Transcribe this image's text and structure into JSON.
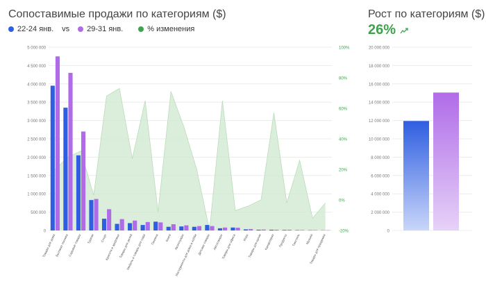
{
  "header": {
    "title": "Сопоставимые продажи по категориям ($)",
    "legend": {
      "series1": "22-24 янв.",
      "vs": "vs",
      "series2": "29-31 янв.",
      "series3": "% изменения"
    }
  },
  "right_header": {
    "title": "Рост по категориям ($)",
    "percent": "26%",
    "trend_icon": "trend-up-icon"
  },
  "colors": {
    "series1": "#2f5ee0",
    "series2": "#b06ce8",
    "pct_fill": "#cfe8cf",
    "pct_text": "#3fa34d"
  },
  "chart_data": [
    {
      "type": "bar",
      "title": "Сопоставимые продажи по категориям ($)",
      "categories": [
        "Товары для дома",
        "Бытовая техника",
        "Садовые товары",
        "Туризм",
        "Спорт",
        "Красота и здоровье",
        "Товары для детей",
        "Мебель и товары для сада",
        "Гигиена",
        "Книги",
        "Аксессуары",
        "Инструменты для дома и хобби",
        "Детские товары",
        "Автотовары",
        "Товары для офиса",
        "Игры",
        "Товары для кухни",
        "Канцелярия",
        "Продукты",
        "Текстиль",
        "Музыка",
        "Товары для праздника"
      ],
      "series": [
        {
          "name": "22-24 янв.",
          "values": [
            3950000,
            3350000,
            2050000,
            830000,
            320000,
            180000,
            200000,
            150000,
            240000,
            100000,
            110000,
            100000,
            150000,
            60000,
            80000,
            30000,
            20000,
            20000,
            15000,
            10000,
            8000,
            5000
          ]
        },
        {
          "name": "29-31 янв.",
          "values": [
            4750000,
            4300000,
            2700000,
            860000,
            580000,
            310000,
            270000,
            230000,
            220000,
            170000,
            140000,
            120000,
            120000,
            80000,
            75000,
            40000,
            25000,
            20000,
            20000,
            12000,
            10000,
            8000
          ]
        },
        {
          "name": "% изменения",
          "axis": "right",
          "values": [
            20,
            28,
            32,
            3,
            68,
            73,
            27,
            65,
            -8,
            71,
            48,
            20,
            -20,
            65,
            -7,
            -4,
            0,
            57,
            -2,
            26,
            -12,
            -2
          ]
        }
      ],
      "ylim": [
        0,
        5000000
      ],
      "y_ticks": [
        "0",
        "500 000",
        "1 000 000",
        "1 500 000",
        "2 000 000",
        "2 500 000",
        "3 000 000",
        "3 500 000",
        "4 000 000",
        "4 500 000",
        "5 000 000"
      ],
      "y2lim": [
        -20,
        100
      ],
      "y2_ticks": [
        "-20%",
        "0%",
        "20%",
        "40%",
        "60%",
        "80%",
        "100%"
      ],
      "x_tick_labels_shown": [
        "Товары для дома",
        "Бытовая техника",
        "Садовые товары",
        "Туризм",
        "Спорт",
        "Красота и здоровье",
        "Товары для детей",
        "Мебель и товары для сада",
        "Гигиена",
        "Книги",
        "Аксессуары",
        "Инструменты для дома и хобби",
        "Детские товары",
        "Автотовары",
        "Товары для офиса",
        "Игры",
        "Товары для кухни",
        "Канцелярия",
        "Продукты",
        "Текстиль",
        "Музыка",
        "Товары для праздника"
      ],
      "grid": true
    },
    {
      "type": "bar",
      "title": "Рост по категориям ($)",
      "categories": [
        "22-24 янв.",
        "29-31 янв."
      ],
      "values": [
        11950000,
        15050000
      ],
      "ylim": [
        0,
        20000000
      ],
      "y_ticks": [
        "0",
        "2 000 000",
        "4 000 000",
        "6 000 000",
        "8 000 000",
        "10 000 000",
        "12 000 000",
        "14 000 000",
        "16 000 000",
        "18 000 000",
        "20 000 000"
      ],
      "grid": true
    }
  ]
}
